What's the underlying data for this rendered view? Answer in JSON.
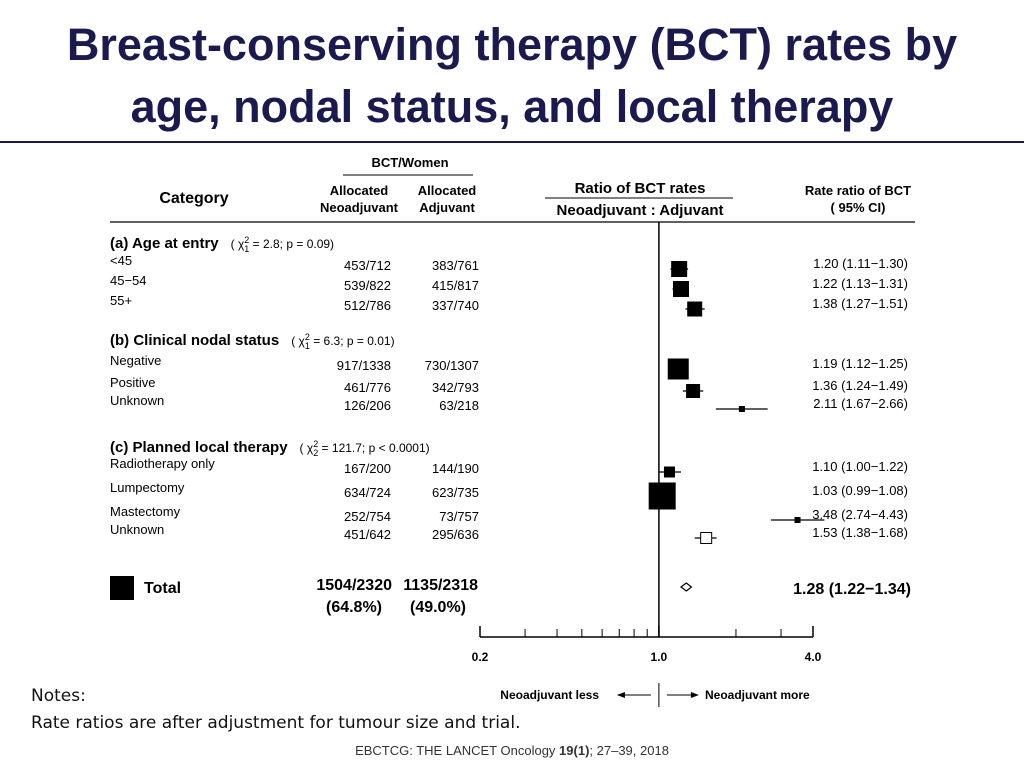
{
  "slide": {
    "title_line1": "Breast-conserving therapy (BCT) rates by",
    "title_line2": "age, nodal status, and local therapy",
    "notes_label": "Notes:",
    "notes_text": "Rate ratios are after adjustment for tumour size and trial.",
    "citation_source": "EBCTCG: THE LANCET Oncology",
    "citation_volume": "19(1)",
    "citation_pages": ";  27–39, 2018"
  },
  "headers": {
    "category": "Category",
    "bct_women": "BCT/Women",
    "neo_line1": "Allocated",
    "neo_line2": "Neoadjuvant",
    "adj_line1": "Allocated",
    "adj_line2": "Adjuvant",
    "ratio_line1": "Ratio of BCT rates",
    "ratio_line2": "Neoadjuvant : Adjuvant",
    "rr_line1": "Rate ratio of BCT",
    "rr_line2": "( 95% CI)"
  },
  "chart_data": {
    "type": "forest",
    "x_scale": "log",
    "xlim": [
      0.2,
      4.0
    ],
    "ticks": [
      {
        "value": 0.2,
        "label": "0.2"
      },
      {
        "value": 1.0,
        "label": "1.0"
      },
      {
        "value": 4.0,
        "label": "4.0"
      }
    ],
    "minor_ticks": [
      0.3,
      0.4,
      0.5,
      0.6,
      0.7,
      0.8,
      0.9,
      2.0,
      3.0
    ],
    "reference_line": 1.0,
    "direction_left": "Neoadjuvant less",
    "direction_right": "Neoadjuvant more",
    "groups": [
      {
        "heading": "(a) Age at entry",
        "test_chi": "χ",
        "test_sup": "2",
        "test_sub": "1",
        "test_rest": " = 2.8;  p = 0.09)",
        "rows": [
          {
            "label": "<45",
            "neo": "453/712",
            "adj": "383/761",
            "rr": 1.2,
            "lo": 1.11,
            "hi": 1.3,
            "ci_text": "1.20 (1.11−1.30)",
            "size": 15,
            "filled": true
          },
          {
            "label": "45−54",
            "neo": "539/822",
            "adj": "415/817",
            "rr": 1.22,
            "lo": 1.13,
            "hi": 1.31,
            "ci_text": "1.22 (1.13−1.31)",
            "size": 15,
            "filled": true
          },
          {
            "label": "55+",
            "neo": "512/786",
            "adj": "337/740",
            "rr": 1.38,
            "lo": 1.27,
            "hi": 1.51,
            "ci_text": "1.38 (1.27−1.51)",
            "size": 14,
            "filled": true
          }
        ]
      },
      {
        "heading": "(b) Clinical nodal status",
        "test_chi": "χ",
        "test_sup": "2",
        "test_sub": "1",
        "test_rest": " = 6.3;  p = 0.01)",
        "rows": [
          {
            "label": "Negative",
            "neo": "917/1338",
            "adj": "730/1307",
            "rr": 1.19,
            "lo": 1.12,
            "hi": 1.25,
            "ci_text": "1.19 (1.12−1.25)",
            "size": 20,
            "filled": true
          },
          {
            "label": "Positive",
            "neo": "461/776",
            "adj": "342/793",
            "rr": 1.36,
            "lo": 1.24,
            "hi": 1.49,
            "ci_text": "1.36 (1.24−1.49)",
            "size": 13,
            "filled": true
          },
          {
            "label": "Unknown",
            "neo": "126/206",
            "adj": "63/218",
            "rr": 2.11,
            "lo": 1.67,
            "hi": 2.66,
            "ci_text": "2.11 (1.67−2.66)",
            "size": 5,
            "filled": true
          }
        ]
      },
      {
        "heading": "(c) Planned local therapy",
        "test_chi": "χ",
        "test_sup": "2",
        "test_sub": "2",
        "test_rest": " = 121.7;  p < 0.0001)",
        "rows": [
          {
            "label": "Radiotherapy only",
            "neo": "167/200",
            "adj": "144/190",
            "rr": 1.1,
            "lo": 1.0,
            "hi": 1.22,
            "ci_text": "1.10 (1.00−1.22)",
            "size": 10,
            "filled": true
          },
          {
            "label": "Lumpectomy",
            "neo": "634/724",
            "adj": "623/735",
            "rr": 1.03,
            "lo": 0.99,
            "hi": 1.08,
            "ci_text": "1.03 (0.99−1.08)",
            "size": 26,
            "filled": true
          },
          {
            "label": "Mastectomy",
            "neo": "252/754",
            "adj": "73/757",
            "rr": 3.48,
            "lo": 2.74,
            "hi": 4.43,
            "ci_text": "3.48 (2.74−4.43)",
            "size": 5,
            "filled": true
          },
          {
            "label": "Unknown",
            "neo": "451/642",
            "adj": "295/636",
            "rr": 1.53,
            "lo": 1.38,
            "hi": 1.68,
            "ci_text": "1.53 (1.38−1.68)",
            "size": 11,
            "filled": false
          }
        ]
      }
    ],
    "total": {
      "label": "Total",
      "neo": "1504/2320",
      "neo_pct": "(64.8%)",
      "adj": "1135/2318",
      "adj_pct": "(49.0%)",
      "rr": 1.28,
      "lo": 1.22,
      "hi": 1.34,
      "ci_text": "1.28 (1.22−1.34)"
    }
  }
}
